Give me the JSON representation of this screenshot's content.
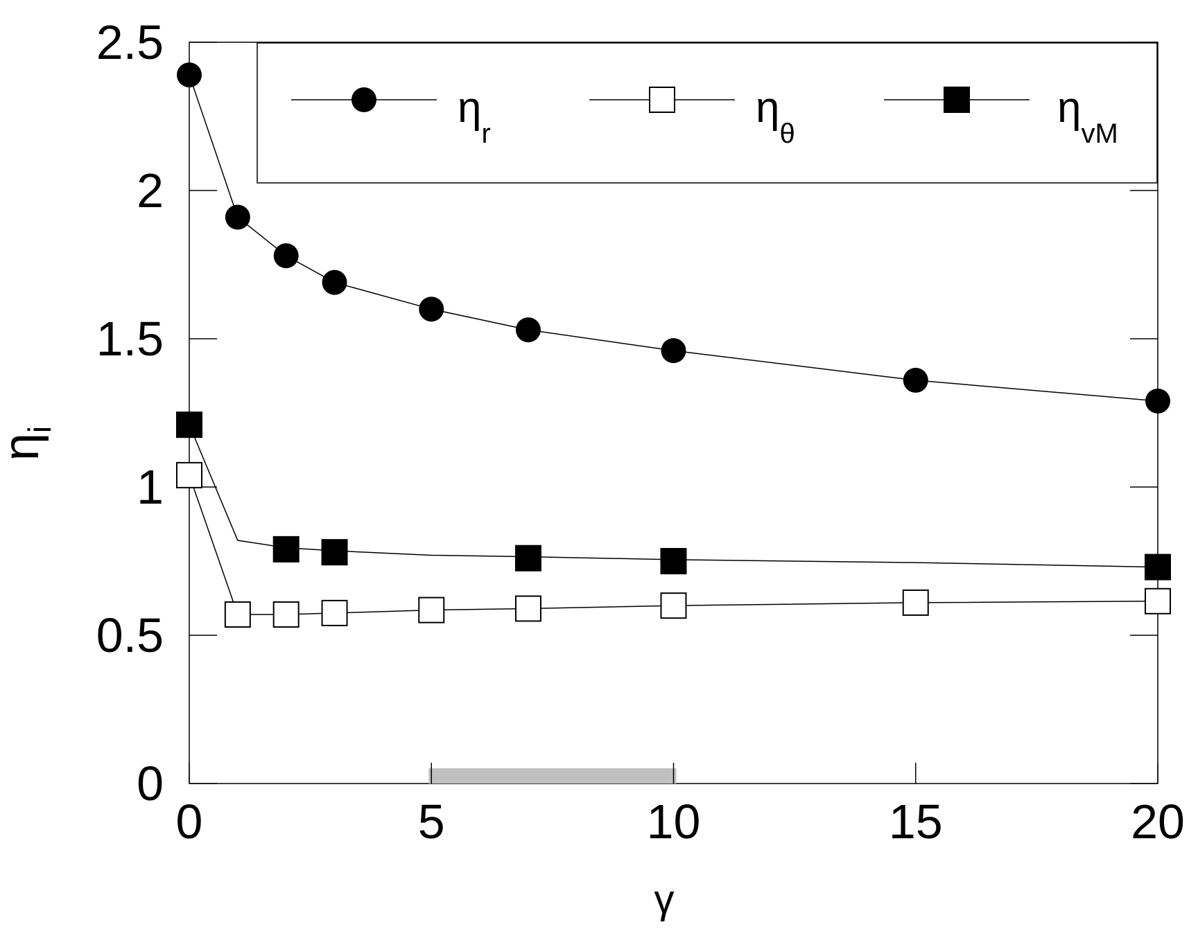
{
  "chart_data": {
    "type": "line",
    "xlabel": "γ",
    "ylabel": {
      "main": "η",
      "sub": "i"
    },
    "xlim": [
      0,
      20
    ],
    "ylim": [
      0,
      2.5
    ],
    "xticks": [
      {
        "value": 0,
        "label": "0"
      },
      {
        "value": 5,
        "label": "5"
      },
      {
        "value": 10,
        "label": "10"
      },
      {
        "value": 15,
        "label": "15"
      },
      {
        "value": 20,
        "label": "20"
      }
    ],
    "yticks": [
      {
        "value": 0,
        "label": "0"
      },
      {
        "value": 0.5,
        "label": "0.5"
      },
      {
        "value": 1,
        "label": "1"
      },
      {
        "value": 1.5,
        "label": "1.5"
      },
      {
        "value": 2,
        "label": "2"
      },
      {
        "value": 2.5,
        "label": "2.5"
      }
    ],
    "grid": false,
    "legend": {
      "placement": "top",
      "orientation": "horizontal",
      "boxed": true
    },
    "shaded_range": {
      "x": [
        5,
        10
      ],
      "color": "#c0c0c0",
      "at_y": 0
    },
    "series": [
      {
        "key": "r",
        "name_main": "η",
        "name_sub": "r",
        "marker": "filled-circle",
        "x": [
          0,
          1,
          2,
          3,
          5,
          7,
          10,
          15,
          20
        ],
        "y": [
          2.39,
          1.91,
          1.78,
          1.69,
          1.6,
          1.53,
          1.46,
          1.36,
          1.29
        ],
        "line": {
          "x": [
            0,
            1,
            2,
            3,
            5,
            7,
            10,
            15,
            20
          ],
          "y": [
            2.39,
            1.91,
            1.78,
            1.69,
            1.6,
            1.53,
            1.46,
            1.36,
            1.29
          ]
        }
      },
      {
        "key": "theta",
        "name_main": "η",
        "name_sub": "θ",
        "marker": "open-square",
        "x": [
          0,
          1,
          2,
          3,
          5,
          7,
          10,
          15,
          20
        ],
        "y": [
          1.04,
          0.57,
          0.57,
          0.575,
          0.585,
          0.59,
          0.6,
          0.61,
          0.615
        ],
        "line": {
          "x": [
            0,
            1,
            2,
            3,
            5,
            7,
            10,
            15,
            20
          ],
          "y": [
            1.04,
            0.57,
            0.57,
            0.575,
            0.585,
            0.59,
            0.6,
            0.61,
            0.615
          ]
        }
      },
      {
        "key": "vM",
        "name_main": "η",
        "name_sub": "vM",
        "marker": "filled-square",
        "x": [
          0,
          2,
          3,
          7,
          10,
          20
        ],
        "y": [
          1.21,
          0.79,
          0.78,
          0.76,
          0.75,
          0.73
        ],
        "line": {
          "x": [
            0,
            1,
            2,
            3,
            5,
            7,
            10,
            15,
            20
          ],
          "y": [
            1.21,
            0.82,
            0.795,
            0.785,
            0.77,
            0.765,
            0.755,
            0.745,
            0.73
          ]
        }
      }
    ]
  }
}
